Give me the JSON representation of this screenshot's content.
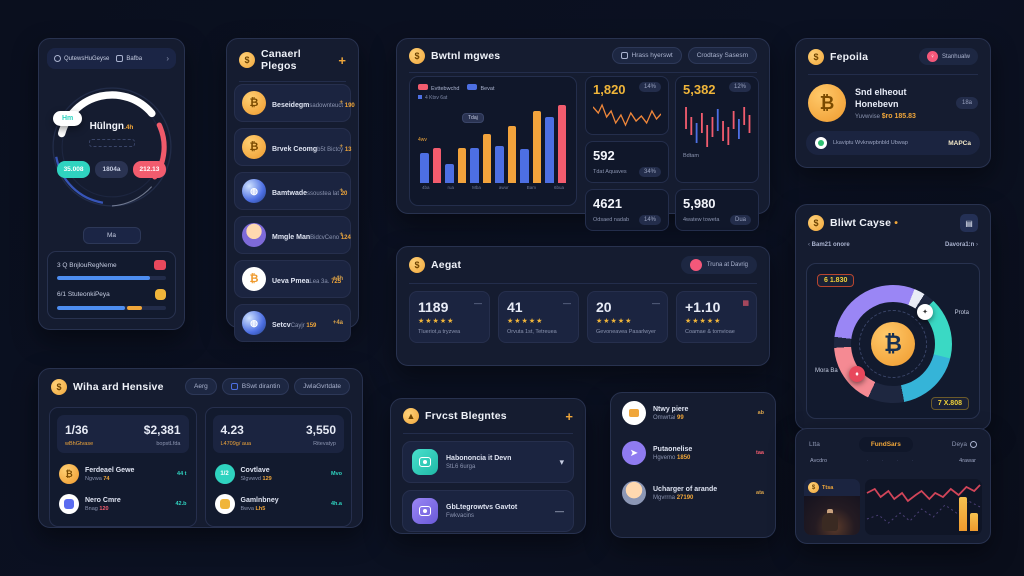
{
  "colors": {
    "accent_gold": "#f0a63a",
    "accent_blue": "#4d6fe3",
    "accent_red": "#f25c6e",
    "accent_teal": "#2fd3c0",
    "accent_purple": "#8f7bf0",
    "panel_bg": "#151c30",
    "page_bg": "#0a0e1b"
  },
  "left_panel": {
    "topbar": {
      "item1": "QutewsHuGeyse",
      "item2": "Bafba",
      "chevron": "›"
    },
    "gauge": {
      "side_pill": "Hm",
      "title": "Hülngn",
      "title_suffix": ".4h",
      "pill_teal": "35.008",
      "pill_gray": "1804a",
      "pill_red": "212.13"
    },
    "tab_label": "Ma",
    "tasks": [
      {
        "label": "3 Q BnjlouRegNeme",
        "progress": 85
      },
      {
        "label": "6/1 StuteonkiPeya",
        "progress": 62
      }
    ]
  },
  "channels": {
    "title": "Canaerl Plegos",
    "add_label": "+",
    "items": [
      {
        "title": "Beseidegm",
        "sub": "sadownteuct",
        "value": "190",
        "right": "+"
      },
      {
        "title": "Brvek Ceomg",
        "sub": "b5t Bictcy",
        "value": "13",
        "right": "+"
      },
      {
        "title": "Bamtwade",
        "sub": "ssoustea lat",
        "value": "20",
        "right": "+"
      },
      {
        "title": "Mmgle Man",
        "sub": "BidcvCeno",
        "value": "124",
        "right": "+"
      },
      {
        "title": "Ueva Pmea",
        "sub": "Lea 3a.",
        "value": "725",
        "right": "+4h"
      },
      {
        "title": "Setcv",
        "sub": "Cayjr",
        "value": "159",
        "right": "+4a"
      }
    ]
  },
  "top_center": {
    "title": "Bwtnl mgwes",
    "buttons": [
      "Hrass hyerswt",
      "Crodtasy Sasesm"
    ],
    "chart": {
      "type": "bar",
      "legend": [
        {
          "label": "Evttebwchd",
          "color": "#f25c6e"
        },
        {
          "label": "Bevat",
          "color": "#4d6fe3"
        }
      ],
      "sublabel": "4 Ktxv 6at",
      "annotation": "4wv",
      "tooltip": "Tdaj",
      "x_labels": [
        "4ba",
        "rua",
        "Mba",
        "awur",
        "Bam",
        "6bua"
      ],
      "bars": [
        {
          "v": 38,
          "c": "blue"
        },
        {
          "v": 45,
          "c": "red"
        },
        {
          "v": 25,
          "c": "blue"
        },
        {
          "v": 45,
          "c": "orange"
        },
        {
          "v": 45,
          "c": "blue"
        },
        {
          "v": 63,
          "c": "orange"
        },
        {
          "v": 48,
          "c": "blue"
        },
        {
          "v": 73,
          "c": "orange"
        },
        {
          "v": 43,
          "c": "blue"
        },
        {
          "v": 92,
          "c": "orange"
        },
        {
          "v": 85,
          "c": "blue"
        },
        {
          "v": 100,
          "c": "red"
        }
      ]
    },
    "stats": {
      "s1_value": "1,820",
      "s1_badge": "14%",
      "s2_value": "592",
      "s2_label": "Tdat Aquaves",
      "s2_badge": "34%",
      "s3_value": "4621",
      "s3_label": "Odsaed nadab",
      "s3_badge": "14%",
      "s4_value": "5,382",
      "s4_badge": "12%",
      "s4_label": "Bdtam",
      "s5_value": "5,980",
      "s5_label": "4watew toweta",
      "s5_badge": "Dua"
    }
  },
  "fepoila": {
    "title": "Fepoila",
    "badge": "Stanhualw",
    "badge_icon": "♀",
    "card": {
      "line1": "Snd elheout",
      "line2": "Honebevn",
      "sub": "Yuvwvise",
      "value": "$ro 185.83",
      "chip": "18a",
      "symbol": "₿"
    },
    "footer": {
      "text": "Lkaviptu Wvknwpbnbld Ubwap",
      "right": "MAPCa"
    }
  },
  "aegat": {
    "title": "Aegat",
    "badge": "Truna at Davrig",
    "stars": "★★★★★",
    "cards": [
      {
        "value": "1189",
        "label": "Tlueriot,a tryzvea",
        "menu": "—"
      },
      {
        "value": "41",
        "label": "Orvuta 1st, Tetreuea",
        "menu": "—"
      },
      {
        "value": "20",
        "label": "Gevoneavea Pasarlwyer",
        "menu": "—"
      },
      {
        "value": "+1.10",
        "label": "Coamae & tomvioae",
        "menu": "▦"
      }
    ]
  },
  "bliwt": {
    "title": "Bliwt Cayse",
    "title_suffix": "•",
    "corner_icon": "▤",
    "chev_left": "‹",
    "nav_left": "Bam21 onore",
    "nav_right": "Davora1:n",
    "chev_right": "›",
    "donut": {
      "top_value": "6 1.830",
      "right_label": "Prota",
      "left_label": "Mora Ba",
      "bottom_value": "7 X.808",
      "center_symbol": "₿",
      "right_chip": "✦",
      "left_chip": "♦"
    }
  },
  "wina": {
    "title": "Wiha ard Hensive",
    "buttons": [
      "Aerg",
      "BSwt dirantin",
      "JwlaGvrtdate"
    ],
    "left": {
      "v1": "1/36",
      "v1_sub": "wBhGtvase",
      "v2": "$2,381",
      "v2_sub": "bopstLfda",
      "rows": [
        {
          "title": "Ferdeael Gewe",
          "sub": "Ngvwa",
          "sub_value": "74",
          "right": "44 t",
          "icon": "₿"
        },
        {
          "title": "Nero Cmre",
          "sub": "Bnag",
          "sub_value": "120",
          "right": "42.b",
          "icon": ""
        }
      ]
    },
    "right": {
      "v1": "4.23",
      "v1_sub": "L4709g/ aua",
      "v2": "3,550",
      "v2_sub": "Ritevatyp",
      "rows": [
        {
          "title": "Covtlave",
          "sub": "Slgvwvd",
          "sub_value": "129",
          "right": "Mvo",
          "icon": "1/2"
        },
        {
          "title": "Gamlnbney",
          "sub": "Bwva",
          "sub_value": "Lh5",
          "right": "4h.a",
          "icon": ""
        }
      ]
    }
  },
  "frvcst": {
    "title": "Frvcst Blegntes",
    "add_label": "+",
    "rows": [
      {
        "title": "Habononcia it Devn",
        "sub": "StL6 6urga",
        "action": "▾"
      },
      {
        "title": "GbLtegrowtvs Gavtot",
        "sub": "Fwkvacins",
        "action": "—"
      }
    ]
  },
  "now_plens": {
    "rows": [
      {
        "title": "Ntwy piere",
        "sub": "Omwrtai",
        "sub_value": "99",
        "right": "ab"
      },
      {
        "title": "Putaonelise",
        "sub": "Hgvemo",
        "sub_value": "1850",
        "right": "taa"
      },
      {
        "title": "Ucharger of arande",
        "sub": "Mgvrrna",
        "sub_value": "27190",
        "right": "ata"
      }
    ]
  },
  "market": {
    "tabs": [
      "Ltta",
      "FundSars",
      "Deya"
    ],
    "sub_left": "Avcdro",
    "sub_right": "4rawar",
    "dots": "· · · ·",
    "card_label": "Ttsa"
  }
}
